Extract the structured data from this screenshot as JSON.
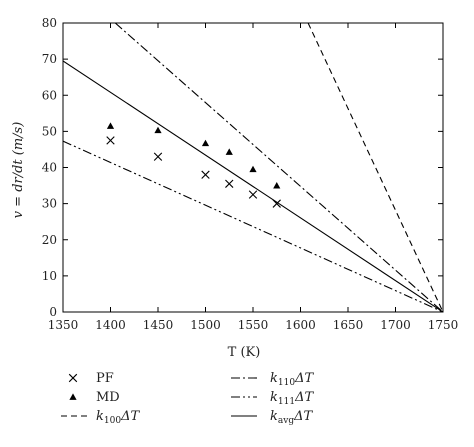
{
  "chart_data": {
    "type": "scatter",
    "xlabel": "T (K)",
    "ylabel": "v = dr/dt (m/s)",
    "xlim": [
      1350,
      1750
    ],
    "ylim": [
      0,
      80
    ],
    "xticks": [
      1350,
      1400,
      1450,
      1500,
      1550,
      1600,
      1650,
      1700,
      1750
    ],
    "yticks": [
      0,
      10,
      20,
      30,
      40,
      50,
      60,
      70,
      80
    ],
    "grid": false,
    "legend_position": "bottom",
    "series": [
      {
        "name": "PF",
        "kind": "points",
        "marker": "x",
        "points": [
          [
            1400,
            47.5
          ],
          [
            1450,
            43.0
          ],
          [
            1500,
            38.0
          ],
          [
            1525,
            35.5
          ],
          [
            1550,
            32.5
          ],
          [
            1575,
            30.0
          ]
        ]
      },
      {
        "name": "MD",
        "kind": "points",
        "marker": "triangle",
        "points": [
          [
            1400,
            51.5
          ],
          [
            1450,
            50.3
          ],
          [
            1500,
            46.7
          ],
          [
            1525,
            44.3
          ],
          [
            1550,
            39.5
          ],
          [
            1575,
            35.0
          ]
        ]
      },
      {
        "name": "k100ΔT",
        "label_main": "k",
        "label_sub": "100",
        "label_tail": "ΔT",
        "kind": "line",
        "style": "dashed",
        "points": [
          [
            1608,
            80
          ],
          [
            1750,
            0
          ]
        ]
      },
      {
        "name": "k110ΔT",
        "label_main": "k",
        "label_sub": "110",
        "label_tail": "ΔT",
        "kind": "line",
        "style": "dashdot",
        "points": [
          [
            1405,
            80
          ],
          [
            1750,
            0
          ]
        ]
      },
      {
        "name": "k111ΔT",
        "label_main": "k",
        "label_sub": "111",
        "label_tail": "ΔT",
        "kind": "line",
        "style": "dashdotdot",
        "points": [
          [
            1350,
            47.3
          ],
          [
            1750,
            0
          ]
        ]
      },
      {
        "name": "kavgΔT",
        "label_main": "k",
        "label_sub": "avg",
        "label_tail": "ΔT",
        "kind": "line",
        "style": "solid",
        "points": [
          [
            1350,
            69.5
          ],
          [
            1750,
            0
          ]
        ]
      }
    ]
  }
}
